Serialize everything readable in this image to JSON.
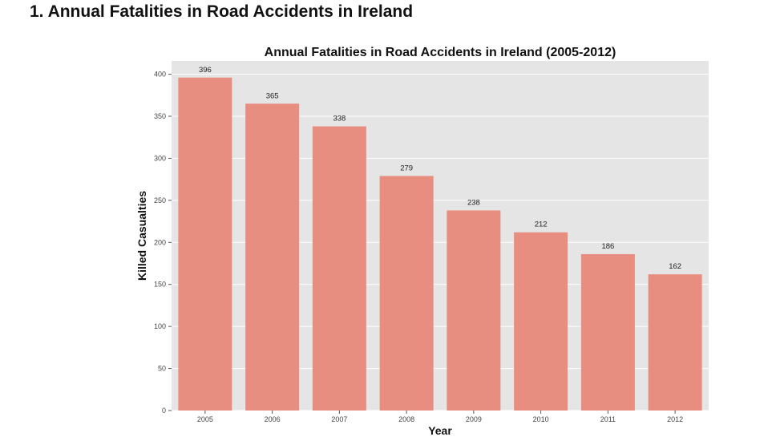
{
  "page": {
    "heading": "1. Annual Fatalities in Road Accidents in Ireland"
  },
  "chart_data": {
    "type": "bar",
    "title": "Annual Fatalities in Road Accidents in Ireland (2005-2012)",
    "xlabel": "Year",
    "ylabel": "Killed Casualties",
    "categories": [
      "2005",
      "2006",
      "2007",
      "2008",
      "2009",
      "2010",
      "2011",
      "2012"
    ],
    "values": [
      396,
      365,
      338,
      279,
      238,
      212,
      186,
      162
    ],
    "value_labels": [
      "396",
      "365",
      "338",
      "279",
      "238",
      "212",
      "186",
      "162"
    ],
    "yticks": [
      0,
      50,
      100,
      150,
      200,
      250,
      300,
      350,
      400
    ],
    "ylim": [
      0,
      415.8
    ],
    "grid": true,
    "bar_color": "#E88E80",
    "background_color": "#E5E5E5",
    "grid_color": "#FFFFFF"
  }
}
